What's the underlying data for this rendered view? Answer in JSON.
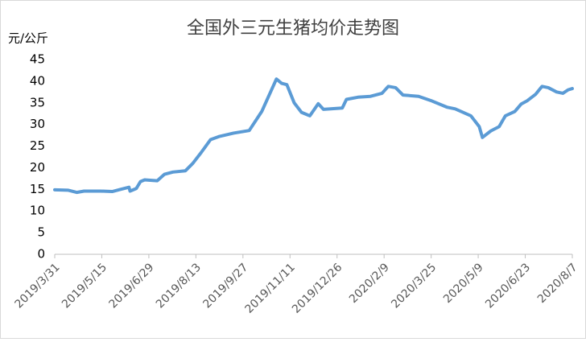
{
  "chart_data": {
    "type": "line",
    "title": "全国外三元生猪均价走势图",
    "y_label": "元/公斤",
    "x": [
      "2019/3/31",
      "2019/4/13",
      "2019/4/21",
      "2019/4/28",
      "2019/5/14",
      "2019/5/25",
      "2019/6/2",
      "2019/6/10",
      "2019/6/11",
      "2019/6/17",
      "2019/6/21",
      "2019/6/25",
      "2019/7/7",
      "2019/7/14",
      "2019/7/22",
      "2019/8/3",
      "2019/8/10",
      "2019/8/18",
      "2019/8/27",
      "2019/9/4",
      "2019/9/18",
      "2019/10/3",
      "2019/10/15",
      "2019/10/29",
      "2019/11/3",
      "2019/11/8",
      "2019/11/15",
      "2019/11/22",
      "2019/11/30",
      "2019/12/8",
      "2019/12/13",
      "2019/12/31",
      "2020/1/4",
      "2020/1/15",
      "2020/1/27",
      "2020/2/7",
      "2020/2/13",
      "2020/2/20",
      "2020/2/27",
      "2020/3/13",
      "2020/3/25",
      "2020/4/9",
      "2020/4/17",
      "2020/5/2",
      "2020/5/10",
      "2020/5/13",
      "2020/5/21",
      "2020/5/29",
      "2020/6/4",
      "2020/6/13",
      "2020/6/19",
      "2020/6/25",
      "2020/7/3",
      "2020/7/9",
      "2020/7/15",
      "2020/7/23",
      "2020/7/29",
      "2020/8/3",
      "2020/8/7"
    ],
    "series": [
      {
        "name": "全国外三元生猪均价",
        "color": "#5b9bd5",
        "values": [
          14.9,
          14.8,
          14.3,
          14.6,
          14.6,
          14.5,
          15.0,
          15.5,
          14.6,
          15.2,
          16.8,
          17.2,
          17.0,
          18.5,
          19.0,
          19.3,
          21,
          23.5,
          26.5,
          27.2,
          28.0,
          28.6,
          33,
          40.5,
          39.5,
          39.2,
          35,
          32.8,
          32,
          34.8,
          33.5,
          33.8,
          35.8,
          36.3,
          36.5,
          37.2,
          38.8,
          38.5,
          36.8,
          36.5,
          35.5,
          34.0,
          33.6,
          32.0,
          29.5,
          27,
          28.5,
          29.5,
          32,
          33,
          34.7,
          35.5,
          37,
          38.8,
          38.5,
          37.5,
          37.2,
          38.0,
          38.3
        ]
      }
    ],
    "xlim": [
      "2019/3/31",
      "2020/8/7"
    ],
    "xticks": [
      "2019/3/31",
      "2019/5/15",
      "2019/6/29",
      "2019/8/13",
      "2019/9/27",
      "2019/11/11",
      "2019/12/26",
      "2020/2/9",
      "2020/3/25",
      "2020/5/9",
      "2020/6/23",
      "2020/8/7"
    ],
    "ylim": [
      0,
      45
    ],
    "yticks": [
      0,
      5,
      10,
      15,
      20,
      25,
      30,
      35,
      40,
      45
    ],
    "grid": false
  }
}
